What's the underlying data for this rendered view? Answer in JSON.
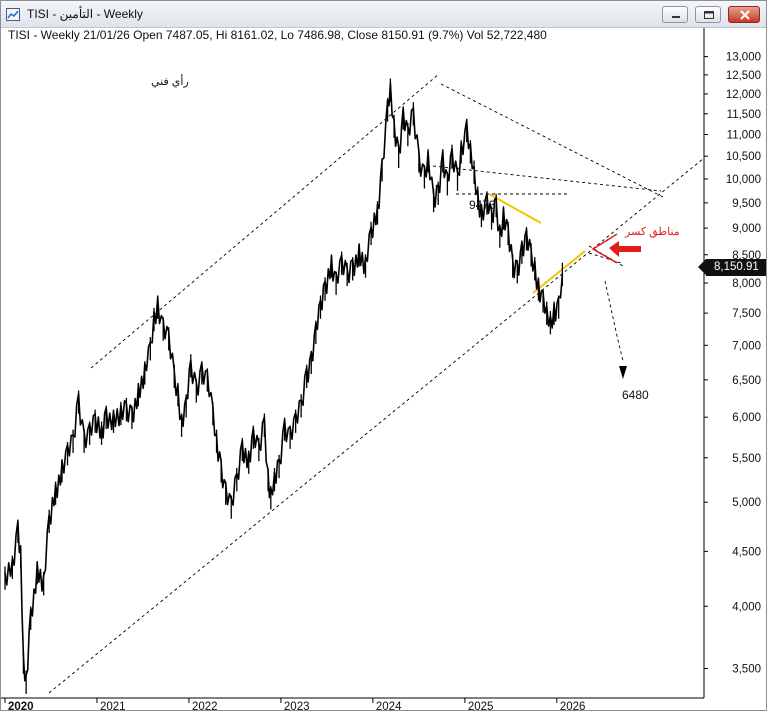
{
  "window": {
    "title": "TISI - التأمين - Weekly",
    "buttons": {
      "minimize": "minimize-icon",
      "maximize": "maximize-icon",
      "close": "close-icon"
    }
  },
  "info_line": "TISI - Weekly 21/01/26 Open 7487.05, Hi 8161.02, Lo 7486.98, Close 8150.91 (9.7%) Vol 52,722,480",
  "annotations": {
    "opinion": "رأي فني",
    "support_label": "9473",
    "break_zones": "مناطق كسر",
    "target": "6480",
    "last_price": "8,150.91"
  },
  "colors": {
    "price": "#000000",
    "trend_lines": "#000000",
    "break_lines": "#f5c400",
    "arrow": "#e31b1b",
    "annotation_red": "#e31b1b"
  },
  "chart_data": {
    "type": "line",
    "title": "TISI - Weekly",
    "scale": "log",
    "ylim": [
      3300,
      13500
    ],
    "xlim": [
      2020.0,
      2027.6
    ],
    "y_ticks": [
      3500,
      4000,
      4500,
      5000,
      5500,
      6000,
      6500,
      7000,
      7500,
      8000,
      8500,
      9000,
      9500,
      10000,
      10500,
      11000,
      11500,
      12000,
      12500,
      13000
    ],
    "y_tick_labels": [
      "3,500",
      "4,000",
      "4,500",
      "5,000",
      "5,500",
      "6,000",
      "6,500",
      "7,000",
      "7,500",
      "8,000",
      "8,500",
      "9,000",
      "9,500",
      "10,000",
      "10,500",
      "11,000",
      "11,500",
      "12,000",
      "12,500",
      "13,000"
    ],
    "x_ticks": [
      2020,
      2021,
      2022,
      2023,
      2024,
      2025,
      2026
    ],
    "x_tick_labels": [
      "2020",
      "2021",
      "2022",
      "2023",
      "2024",
      "2025",
      "2026"
    ],
    "grid": false,
    "series": [
      {
        "values": [
          [
            2020.0,
            4250
          ],
          [
            2020.08,
            4350
          ],
          [
            2020.14,
            4700
          ],
          [
            2020.17,
            4450
          ],
          [
            2020.2,
            3550
          ],
          [
            2020.23,
            3400
          ],
          [
            2020.28,
            3900
          ],
          [
            2020.35,
            4300
          ],
          [
            2020.42,
            4200
          ],
          [
            2020.48,
            4800
          ],
          [
            2020.55,
            5100
          ],
          [
            2020.62,
            5350
          ],
          [
            2020.68,
            5550
          ],
          [
            2020.74,
            5700
          ],
          [
            2020.8,
            6200
          ],
          [
            2020.86,
            5700
          ],
          [
            2020.92,
            5800
          ],
          [
            2020.98,
            5950
          ],
          [
            2021.05,
            5800
          ],
          [
            2021.1,
            6000
          ],
          [
            2021.18,
            5950
          ],
          [
            2021.26,
            6050
          ],
          [
            2021.32,
            6100
          ],
          [
            2021.38,
            6000
          ],
          [
            2021.45,
            6300
          ],
          [
            2021.52,
            6600
          ],
          [
            2021.58,
            6950
          ],
          [
            2021.62,
            7400
          ],
          [
            2021.66,
            7600
          ],
          [
            2021.72,
            7250
          ],
          [
            2021.78,
            7100
          ],
          [
            2021.84,
            6550
          ],
          [
            2021.88,
            6300
          ],
          [
            2021.92,
            5900
          ],
          [
            2021.97,
            6150
          ],
          [
            2022.02,
            6700
          ],
          [
            2022.08,
            6350
          ],
          [
            2022.14,
            6600
          ],
          [
            2022.2,
            6500
          ],
          [
            2022.26,
            6050
          ],
          [
            2022.3,
            5700
          ],
          [
            2022.35,
            5350
          ],
          [
            2022.4,
            5100
          ],
          [
            2022.46,
            4950
          ],
          [
            2022.52,
            5250
          ],
          [
            2022.58,
            5600
          ],
          [
            2022.65,
            5450
          ],
          [
            2022.7,
            5750
          ],
          [
            2022.76,
            5600
          ],
          [
            2022.82,
            5900
          ],
          [
            2022.86,
            5250
          ],
          [
            2022.89,
            5050
          ],
          [
            2022.93,
            5250
          ],
          [
            2022.98,
            5400
          ],
          [
            2023.04,
            5850
          ],
          [
            2023.1,
            5750
          ],
          [
            2023.16,
            5950
          ],
          [
            2023.22,
            6150
          ],
          [
            2023.28,
            6550
          ],
          [
            2023.33,
            6750
          ],
          [
            2023.38,
            7200
          ],
          [
            2023.43,
            7600
          ],
          [
            2023.48,
            7900
          ],
          [
            2023.55,
            8300
          ],
          [
            2023.6,
            8000
          ],
          [
            2023.66,
            8350
          ],
          [
            2023.72,
            8150
          ],
          [
            2023.78,
            8250
          ],
          [
            2023.85,
            8500
          ],
          [
            2023.92,
            8300
          ],
          [
            2023.98,
            8900
          ],
          [
            2024.05,
            9300
          ],
          [
            2024.1,
            10200
          ],
          [
            2024.16,
            11600
          ],
          [
            2024.19,
            12100
          ],
          [
            2024.23,
            11200
          ],
          [
            2024.28,
            10500
          ],
          [
            2024.33,
            11400
          ],
          [
            2024.38,
            11000
          ],
          [
            2024.44,
            11500
          ],
          [
            2024.5,
            10400
          ],
          [
            2024.56,
            10050
          ],
          [
            2024.6,
            10400
          ],
          [
            2024.66,
            9550
          ],
          [
            2024.71,
            9700
          ],
          [
            2024.76,
            10400
          ],
          [
            2024.81,
            9900
          ],
          [
            2024.86,
            10500
          ],
          [
            2024.92,
            10000
          ],
          [
            2024.96,
            10600
          ],
          [
            2025.02,
            11100
          ],
          [
            2025.06,
            10600
          ],
          [
            2025.1,
            10150
          ],
          [
            2025.14,
            9600
          ],
          [
            2025.18,
            9250
          ],
          [
            2025.24,
            9500
          ],
          [
            2025.29,
            9200
          ],
          [
            2025.34,
            9450
          ],
          [
            2025.38,
            8850
          ],
          [
            2025.42,
            9200
          ],
          [
            2025.47,
            8900
          ],
          [
            2025.52,
            8300
          ],
          [
            2025.57,
            8200
          ],
          [
            2025.62,
            8550
          ],
          [
            2025.67,
            8800
          ],
          [
            2025.72,
            8500
          ],
          [
            2025.76,
            8250
          ],
          [
            2025.8,
            7900
          ],
          [
            2025.85,
            7700
          ],
          [
            2025.89,
            7500
          ],
          [
            2025.93,
            7350
          ],
          [
            2025.97,
            7500
          ],
          [
            2026.02,
            7600
          ],
          [
            2026.06,
            8150.91
          ]
        ]
      }
    ]
  }
}
